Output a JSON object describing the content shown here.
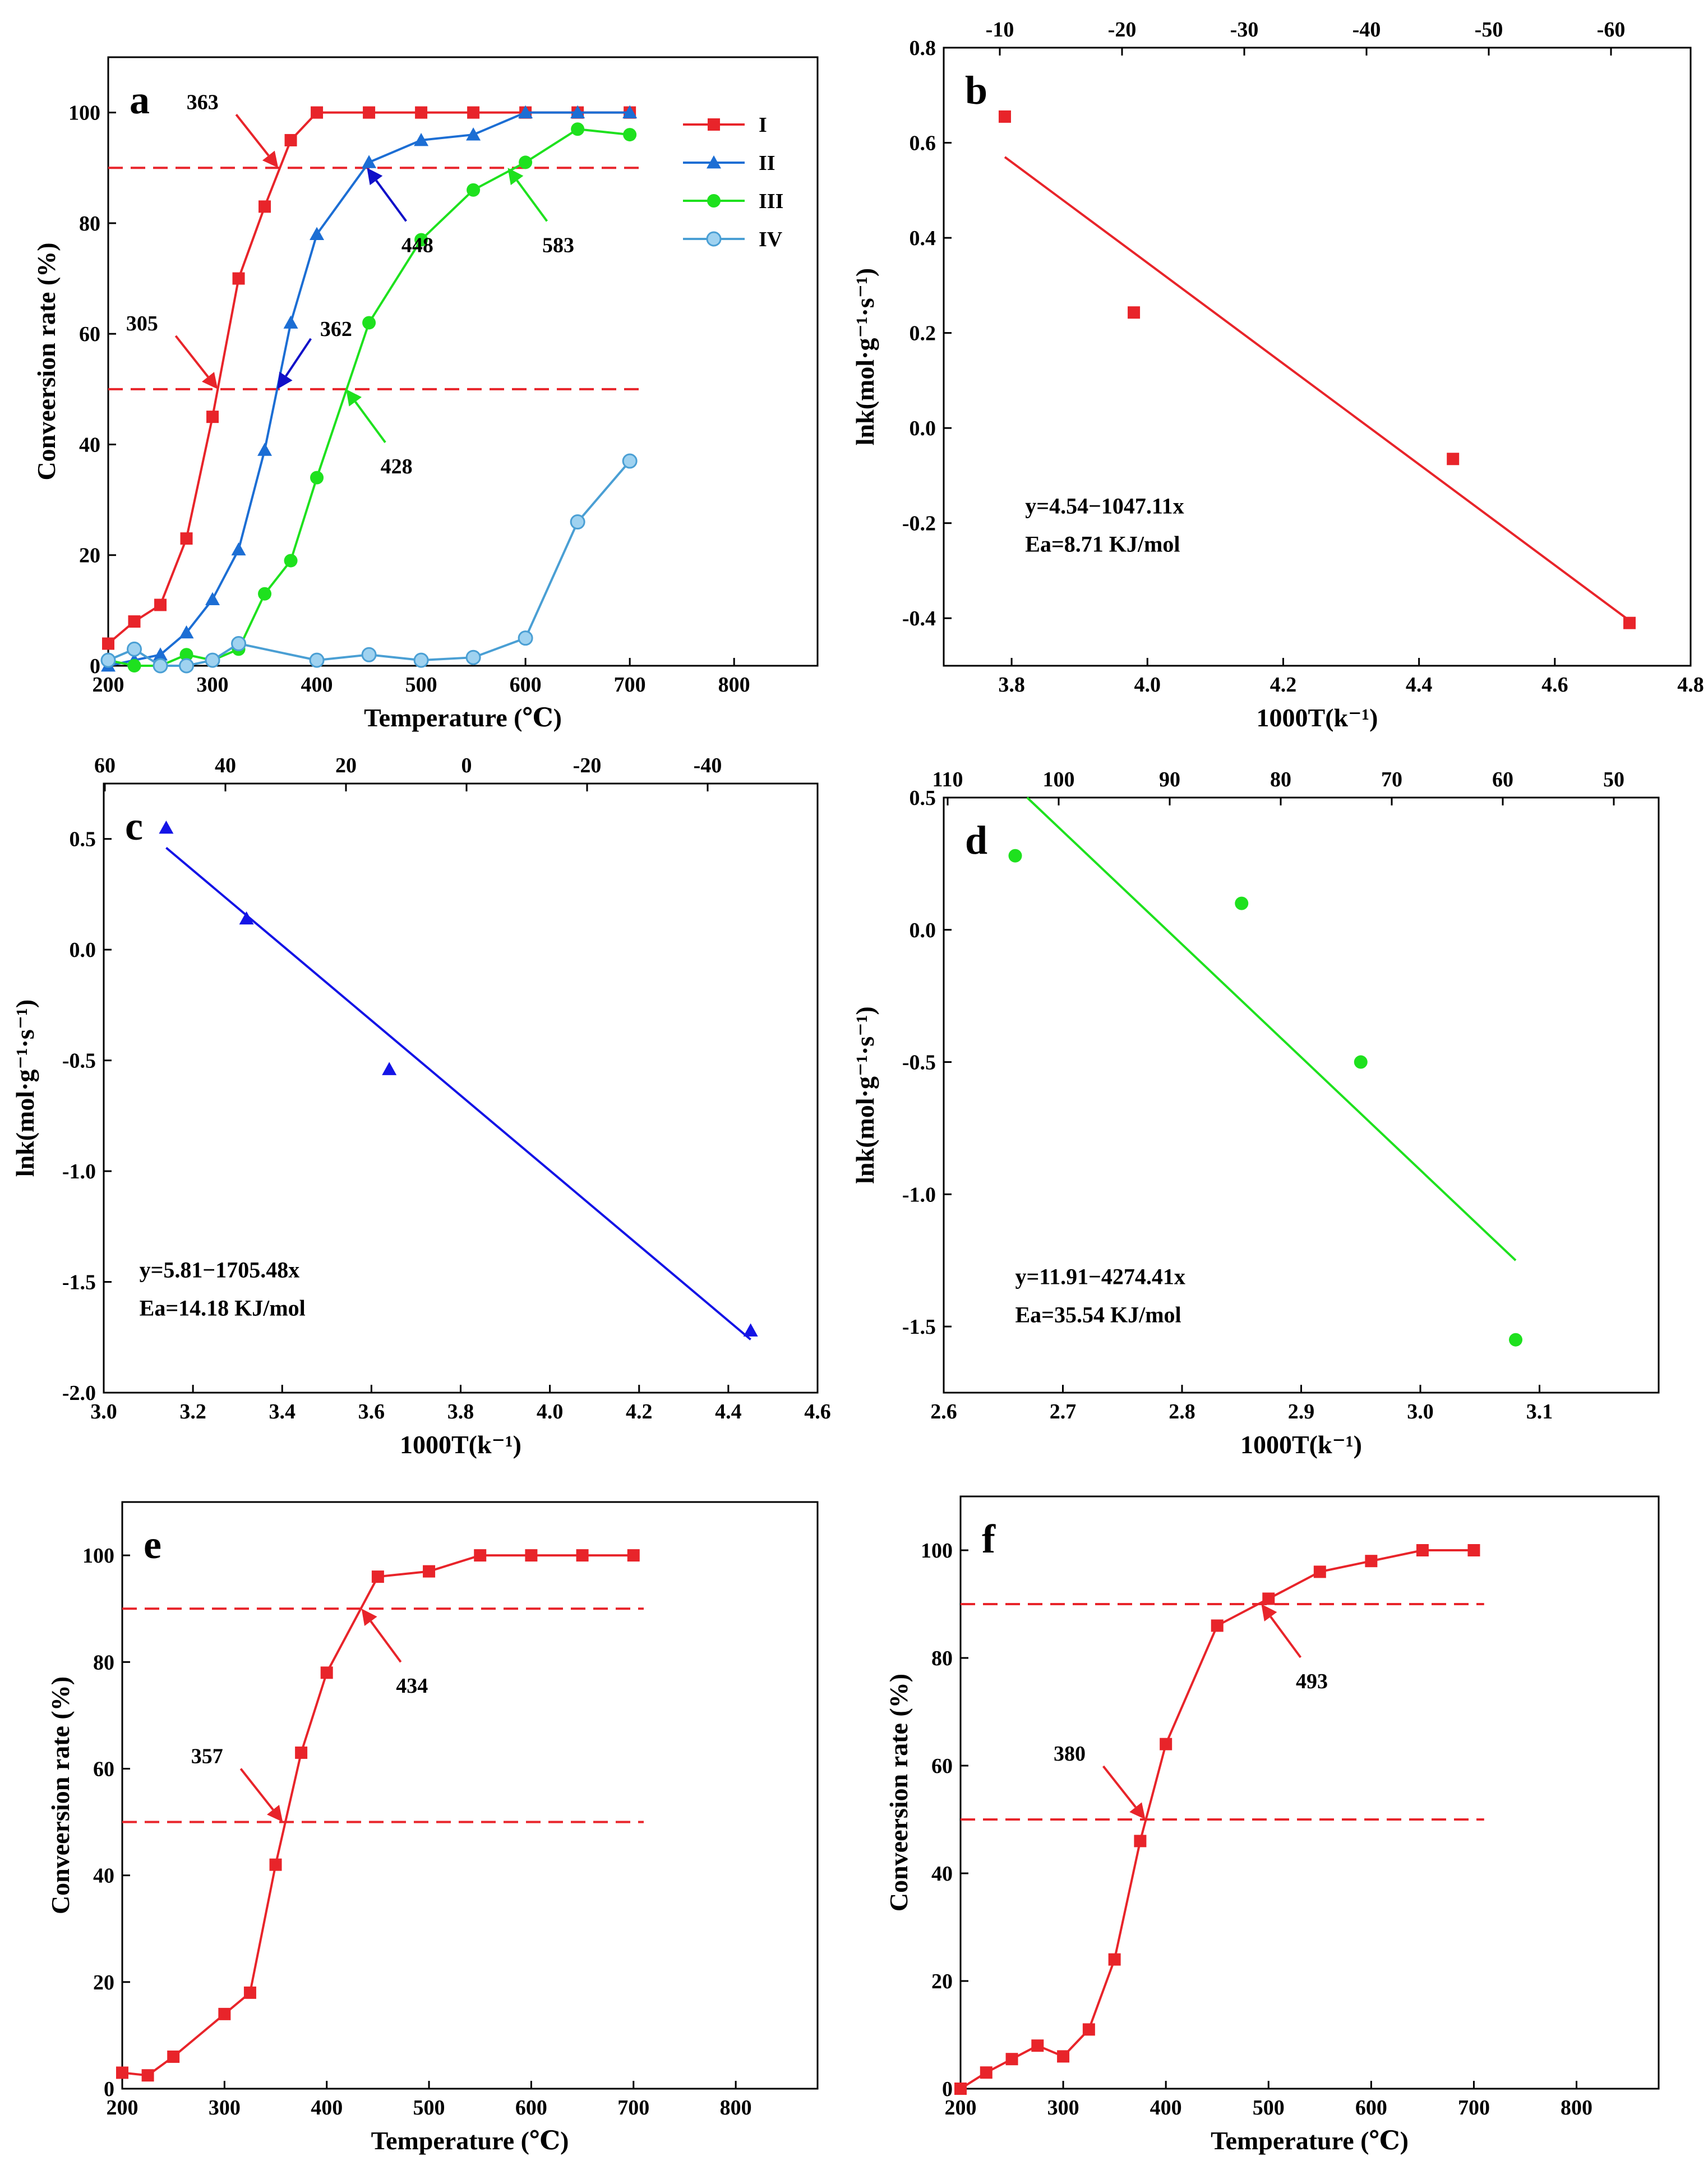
{
  "chart_data": [
    {
      "id": "a",
      "type": "line",
      "panel_label": "a",
      "xlabel": "Temperature (℃)",
      "ylabel": "Conveersion rate (%)",
      "xlim": [
        200,
        880
      ],
      "ylim": [
        0,
        110
      ],
      "xticks": [
        200,
        300,
        400,
        500,
        600,
        700,
        800
      ],
      "yticks": [
        0,
        20,
        40,
        60,
        80,
        100
      ],
      "hlines": [
        90,
        50
      ],
      "legend_position": "top-right",
      "series": [
        {
          "name": "I",
          "color": "#e8242a",
          "marker": "square",
          "x": [
            200,
            225,
            250,
            275,
            300,
            325,
            350,
            375,
            400,
            450,
            500,
            550,
            600,
            650,
            700
          ],
          "y": [
            4,
            8,
            11,
            23,
            45,
            70,
            83,
            95,
            100,
            100,
            100,
            100,
            100,
            100,
            100
          ]
        },
        {
          "name": "II",
          "color": "#1c6ed4",
          "marker": "triangle",
          "x": [
            200,
            225,
            250,
            275,
            300,
            325,
            350,
            375,
            400,
            450,
            500,
            550,
            600,
            650,
            700
          ],
          "y": [
            0,
            1,
            2,
            6,
            12,
            21,
            39,
            62,
            78,
            91,
            95,
            96,
            100,
            100,
            100
          ]
        },
        {
          "name": "III",
          "color": "#1ee11e",
          "marker": "circle",
          "x": [
            200,
            225,
            250,
            275,
            300,
            325,
            350,
            375,
            400,
            450,
            500,
            550,
            600,
            650,
            700
          ],
          "y": [
            1,
            0,
            0,
            2,
            1,
            3,
            13,
            19,
            34,
            62,
            77,
            86,
            91,
            97,
            96
          ]
        },
        {
          "name": "IV",
          "color": "#4a9fd4",
          "marker": "sphere",
          "x": [
            200,
            225,
            250,
            275,
            300,
            325,
            400,
            450,
            500,
            550,
            600,
            650,
            700
          ],
          "y": [
            1,
            3,
            0,
            0,
            1,
            4,
            1,
            2,
            1,
            1.5,
            5,
            26,
            37
          ]
        }
      ],
      "annotations": [
        {
          "text": "363",
          "color": "#e8242a",
          "target": [
            363,
            90
          ],
          "dir": "upper-left"
        },
        {
          "text": "305",
          "color": "#e8242a",
          "target": [
            305,
            50
          ],
          "dir": "upper-left"
        },
        {
          "text": "448",
          "color": "#1010c8",
          "target": [
            448,
            90
          ],
          "dir": "lower-right"
        },
        {
          "text": "362",
          "color": "#1010c8",
          "target": [
            362,
            50
          ],
          "dir": "upper-right"
        },
        {
          "text": "583",
          "color": "#1ee11e",
          "target": [
            583,
            90
          ],
          "dir": "lower-right"
        },
        {
          "text": "428",
          "color": "#1ee11e",
          "target": [
            428,
            50
          ],
          "dir": "lower-right"
        }
      ]
    },
    {
      "id": "b",
      "type": "scatter",
      "panel_label": "b",
      "xlabel": "1000T(k⁻¹)",
      "ylabel": "lnk(mol·g⁻¹·s⁻¹)",
      "xlim": [
        3.7,
        4.8
      ],
      "ylim": [
        -0.5,
        0.8
      ],
      "xticks": [
        3.8,
        4.0,
        4.2,
        4.4,
        4.6,
        4.8
      ],
      "yticks": [
        -0.4,
        -0.2,
        0.0,
        0.2,
        0.4,
        0.6,
        0.8
      ],
      "xtick_labels": [
        "3.8",
        "4.0",
        "4.2",
        "4.4",
        "4.6",
        "4.8"
      ],
      "ytick_labels": [
        "-0.4",
        "-0.2",
        "0.0",
        "0.2",
        "0.4",
        "0.6",
        "0.8"
      ],
      "top_ticks": [
        "-10",
        "-20",
        "-30",
        "-40",
        "-50",
        "-60"
      ],
      "color": "#e8242a",
      "marker": "square",
      "x": [
        3.79,
        3.98,
        4.45,
        4.71
      ],
      "y": [
        0.655,
        0.243,
        -0.065,
        -0.41
      ],
      "fit_x": [
        3.79,
        4.71
      ],
      "fit_y": [
        0.57,
        -0.405
      ],
      "equation": "y=4.54−1047.11x",
      "ea": "Ea=8.71 KJ/mol",
      "eq_at": [
        3.82,
        -0.18
      ]
    },
    {
      "id": "c",
      "type": "scatter",
      "panel_label": "c",
      "xlabel": "1000T(k⁻¹)",
      "ylabel": "lnk(mol·g⁻¹·s⁻¹)",
      "xlim": [
        3.0,
        4.6
      ],
      "ylim": [
        -2.0,
        0.75
      ],
      "xticks": [
        3.0,
        3.2,
        3.4,
        3.6,
        3.8,
        4.0,
        4.2,
        4.4,
        4.6
      ],
      "yticks": [
        -2.0,
        -1.5,
        -1.0,
        -0.5,
        0.0,
        0.5
      ],
      "xtick_labels": [
        "3.0",
        "3.2",
        "3.4",
        "3.6",
        "3.8",
        "4.0",
        "4.2",
        "4.4",
        "4.6"
      ],
      "ytick_labels": [
        "-2.0",
        "-1.5",
        "-1.0",
        "-0.5",
        "0.0",
        "0.5"
      ],
      "top_ticks": [
        "60",
        "40",
        "20",
        "0",
        "-20",
        "-40"
      ],
      "color": "#1414e6",
      "marker": "triangle",
      "x": [
        3.14,
        3.32,
        3.64,
        4.45
      ],
      "y": [
        0.55,
        0.14,
        -0.54,
        -1.72
      ],
      "fit_x": [
        3.14,
        4.45
      ],
      "fit_y": [
        0.46,
        -1.76
      ],
      "equation": "y=5.81−1705.48x",
      "ea": "Ea=14.18 KJ/mol",
      "eq_at": [
        3.08,
        -1.48
      ]
    },
    {
      "id": "d",
      "type": "scatter",
      "panel_label": "d",
      "xlabel": "1000T(k⁻¹)",
      "ylabel": "lnk(mol·g⁻¹·s⁻¹)",
      "xlim": [
        2.6,
        3.2
      ],
      "ylim": [
        -1.75,
        0.5
      ],
      "xticks": [
        2.6,
        2.7,
        2.8,
        2.9,
        3.0,
        3.1
      ],
      "yticks": [
        -1.5,
        -1.0,
        -0.5,
        0.0,
        0.5
      ],
      "xtick_labels": [
        "2.6",
        "2.7",
        "2.8",
        "2.9",
        "3.0",
        "3.1"
      ],
      "ytick_labels": [
        "-1.5",
        "-1.0",
        "-0.5",
        "0.0",
        "0.5"
      ],
      "top_ticks": [
        "110",
        "100",
        "90",
        "80",
        "70",
        "60",
        "50"
      ],
      "color": "#1ee11e",
      "marker": "circle",
      "x": [
        2.66,
        2.85,
        2.95,
        3.08
      ],
      "y": [
        0.28,
        0.1,
        -0.5,
        -1.55
      ],
      "fit_x": [
        2.67,
        3.08
      ],
      "fit_y": [
        0.5,
        -1.25
      ],
      "equation": "y=11.91−4274.41x",
      "ea": "Ea=35.54 KJ/mol",
      "eq_at": [
        2.66,
        -1.34
      ]
    },
    {
      "id": "e",
      "type": "line",
      "panel_label": "e",
      "xlabel": "Temperature (℃)",
      "ylabel": "Conveersion rate (%)",
      "xlim": [
        200,
        880
      ],
      "ylim": [
        0,
        110
      ],
      "xticks": [
        200,
        300,
        400,
        500,
        600,
        700,
        800
      ],
      "yticks": [
        0,
        20,
        40,
        60,
        80,
        100
      ],
      "hlines": [
        90,
        50
      ],
      "series": [
        {
          "name": "e",
          "color": "#e8242a",
          "marker": "square",
          "x": [
            200,
            225,
            250,
            300,
            325,
            350,
            375,
            400,
            450,
            500,
            550,
            600,
            650,
            700
          ],
          "y": [
            3,
            2.5,
            6,
            14,
            18,
            42,
            63,
            78,
            96,
            97,
            100,
            100,
            100,
            100
          ]
        }
      ],
      "annotations": [
        {
          "text": "434",
          "color": "#e8242a",
          "target": [
            434,
            90
          ],
          "dir": "lower-right"
        },
        {
          "text": "357",
          "color": "#e8242a",
          "target": [
            357,
            50
          ],
          "dir": "upper-left"
        }
      ]
    },
    {
      "id": "f",
      "type": "line",
      "panel_label": "f",
      "xlabel": "Temperature (℃)",
      "ylabel": "Conveersion rate (%)",
      "xlim": [
        200,
        880
      ],
      "ylim": [
        0,
        110
      ],
      "xticks": [
        200,
        300,
        400,
        500,
        600,
        700,
        800
      ],
      "yticks": [
        0,
        20,
        40,
        60,
        80,
        100
      ],
      "hlines": [
        90,
        50
      ],
      "series": [
        {
          "name": "f",
          "color": "#e8242a",
          "marker": "square",
          "x": [
            200,
            225,
            250,
            275,
            300,
            325,
            350,
            375,
            400,
            450,
            500,
            550,
            600,
            650,
            700
          ],
          "y": [
            0,
            3,
            5.5,
            8,
            6,
            11,
            24,
            46,
            64,
            86,
            91,
            96,
            98,
            100,
            100
          ]
        }
      ],
      "annotations": [
        {
          "text": "493",
          "color": "#e8242a",
          "target": [
            493,
            90
          ],
          "dir": "lower-right"
        },
        {
          "text": "380",
          "color": "#e8242a",
          "target": [
            380,
            50
          ],
          "dir": "upper-left"
        }
      ]
    }
  ]
}
